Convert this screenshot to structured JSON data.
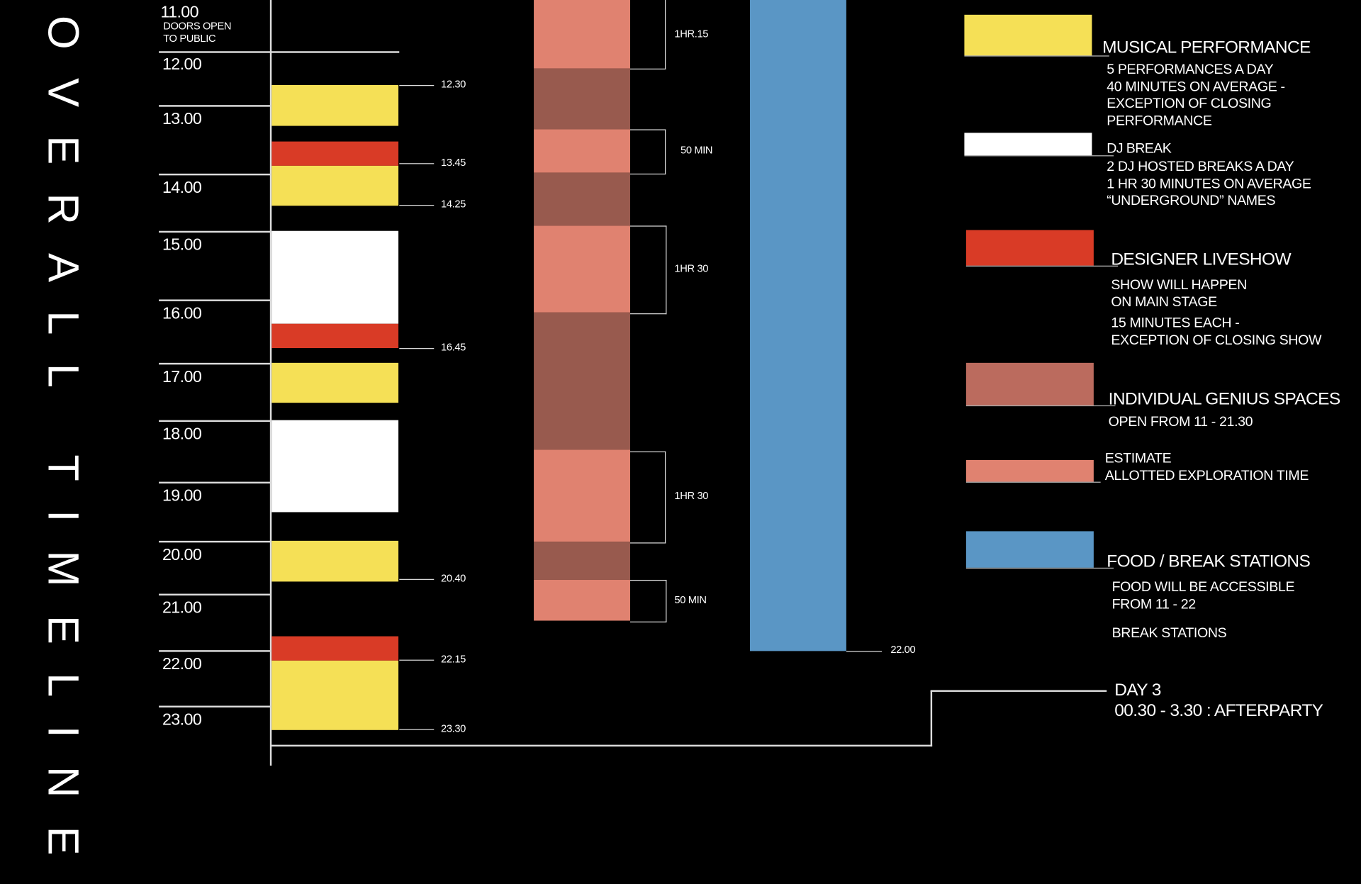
{
  "title": "OVERALL TIMELINE",
  "colors": {
    "performance": "#f5e056",
    "dj": "#ffffff",
    "liveshow": "#d93b26",
    "genius": "#985a4e",
    "genius_legend": "#bb6b5e",
    "exploration": "#e08270",
    "food": "#5a96c5"
  },
  "timeline": {
    "open": {
      "time": "11.00",
      "note_line1": "DOORS OPEN",
      "note_line2": "TO PUBLIC"
    },
    "hours": [
      "12.00",
      "13.00",
      "14.00",
      "15.00",
      "16.00",
      "17.00",
      "18.00",
      "19.00",
      "20.00",
      "21.00",
      "22.00",
      "23.00"
    ],
    "markers": [
      "12.30",
      "13.45",
      "14.25",
      "16.45",
      "20.40",
      "22.15",
      "23.30"
    ],
    "exploration_durations": [
      "1HR.15",
      "50 MIN",
      "1HR 30",
      "1HR 30",
      "50 MIN"
    ],
    "food_end": "22.00"
  },
  "legend": [
    {
      "title": "MUSICAL PERFORMANCE",
      "text": "5 PERFORMANCES A DAY\n40 MINUTES ON AVERAGE -\nEXCEPTION OF CLOSING\nPERFORMANCE"
    },
    {
      "title": "DJ BREAK",
      "text": "2 DJ HOSTED BREAKS A DAY\n1 HR 30 MINUTES ON AVERAGE\n“UNDERGROUND” NAMES"
    },
    {
      "title": "DESIGNER LIVESHOW",
      "text": "SHOW WILL HAPPEN\nON MAIN STAGE",
      "text2": "15 MINUTES EACH -\nEXCEPTION OF CLOSING SHOW"
    },
    {
      "title": "INDIVIDUAL GENIUS SPACES",
      "text": "OPEN FROM 11 - 21.30"
    },
    {
      "title": "",
      "text": "ESTIMATE\nALLOTTED EXPLORATION TIME"
    },
    {
      "title": "FOOD / BREAK STATIONS",
      "text": "FOOD WILL BE ACCESSIBLE\nFROM 11 - 22",
      "text2": "BREAK STATIONS"
    }
  ],
  "afterparty": {
    "day": "DAY 3",
    "time": "00.30 - 3.30 : AFTERPARTY"
  }
}
